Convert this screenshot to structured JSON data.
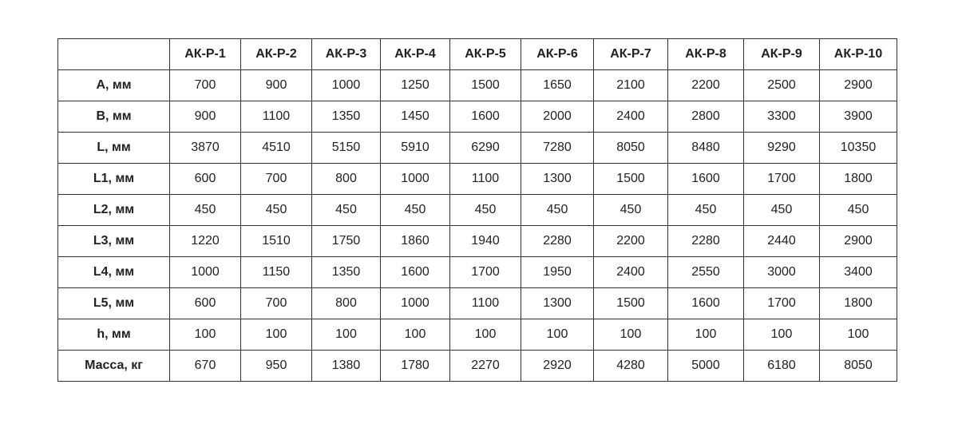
{
  "table": {
    "corner": "",
    "columns": [
      "АК-Р-1",
      "АК-Р-2",
      "АК-Р-3",
      "АК-Р-4",
      "АК-Р-5",
      "АК-Р-6",
      "АК-Р-7",
      "АК-Р-8",
      "АК-Р-9",
      "АК-Р-10"
    ],
    "rows": [
      {
        "label": "A, мм",
        "values": [
          "700",
          "900",
          "1000",
          "1250",
          "1500",
          "1650",
          "2100",
          "2200",
          "2500",
          "2900"
        ]
      },
      {
        "label": "B, мм",
        "values": [
          "900",
          "1100",
          "1350",
          "1450",
          "1600",
          "2000",
          "2400",
          "2800",
          "3300",
          "3900"
        ]
      },
      {
        "label": "L, мм",
        "values": [
          "3870",
          "4510",
          "5150",
          "5910",
          "6290",
          "7280",
          "8050",
          "8480",
          "9290",
          "10350"
        ]
      },
      {
        "label": "L1, мм",
        "values": [
          "600",
          "700",
          "800",
          "1000",
          "1100",
          "1300",
          "1500",
          "1600",
          "1700",
          "1800"
        ]
      },
      {
        "label": "L2, мм",
        "values": [
          "450",
          "450",
          "450",
          "450",
          "450",
          "450",
          "450",
          "450",
          "450",
          "450"
        ]
      },
      {
        "label": "L3, мм",
        "values": [
          "1220",
          "1510",
          "1750",
          "1860",
          "1940",
          "2280",
          "2200",
          "2280",
          "2440",
          "2900"
        ]
      },
      {
        "label": "L4, мм",
        "values": [
          "1000",
          "1150",
          "1350",
          "1600",
          "1700",
          "1950",
          "2400",
          "2550",
          "3000",
          "3400"
        ]
      },
      {
        "label": "L5, мм",
        "values": [
          "600",
          "700",
          "800",
          "1000",
          "1100",
          "1300",
          "1500",
          "1600",
          "1700",
          "1800"
        ]
      },
      {
        "label": "h, мм",
        "values": [
          "100",
          "100",
          "100",
          "100",
          "100",
          "100",
          "100",
          "100",
          "100",
          "100"
        ]
      },
      {
        "label": "Масса, кг",
        "values": [
          "670",
          "950",
          "1380",
          "1780",
          "2270",
          "2920",
          "4280",
          "5000",
          "6180",
          "8050"
        ]
      }
    ]
  }
}
